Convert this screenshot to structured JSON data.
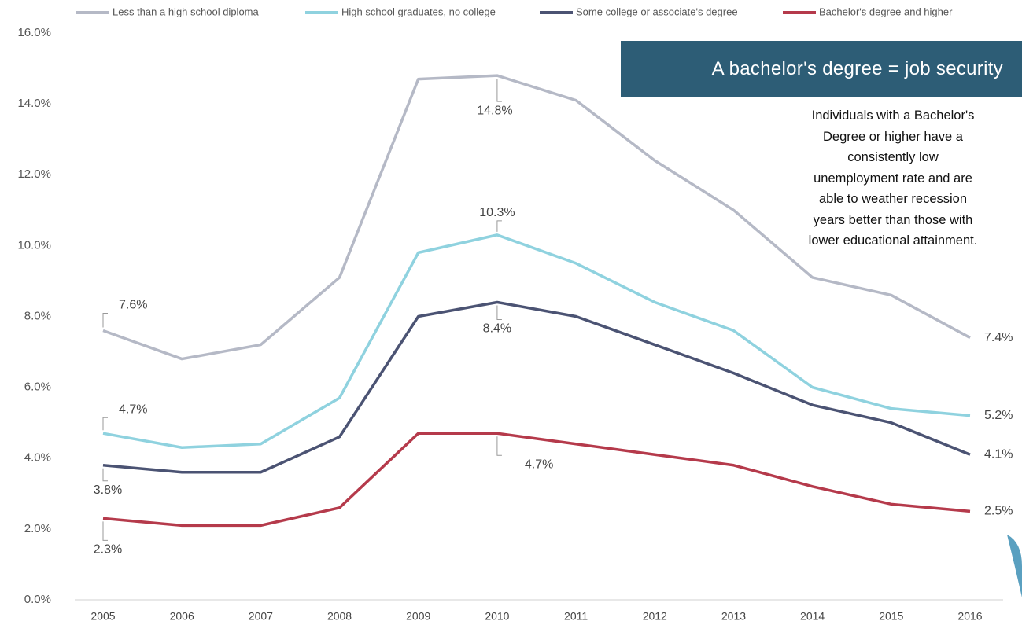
{
  "chart_data": {
    "type": "line",
    "categories": [
      "2005",
      "2006",
      "2007",
      "2008",
      "2009",
      "2010",
      "2011",
      "2012",
      "2013",
      "2014",
      "2015",
      "2016"
    ],
    "series": [
      {
        "name": "Less than a high school diploma",
        "color": "#b5b9c6",
        "values": [
          7.6,
          6.8,
          7.2,
          9.1,
          14.7,
          14.8,
          14.1,
          12.4,
          11.0,
          9.1,
          8.6,
          7.4
        ],
        "value_labels": [
          "7.6%",
          null,
          null,
          null,
          null,
          "14.8%",
          null,
          null,
          null,
          null,
          null,
          "7.4%"
        ]
      },
      {
        "name": "High school graduates, no college",
        "color": "#8fd2df",
        "values": [
          4.7,
          4.3,
          4.4,
          5.7,
          9.8,
          10.3,
          9.5,
          8.4,
          7.6,
          6.0,
          5.4,
          5.2
        ],
        "value_labels": [
          "4.7%",
          null,
          null,
          null,
          null,
          "10.3%",
          null,
          null,
          null,
          null,
          null,
          "5.2%"
        ]
      },
      {
        "name": "Some college or associate's degree",
        "color": "#4b5373",
        "values": [
          3.8,
          3.6,
          3.6,
          4.6,
          8.0,
          8.4,
          8.0,
          7.2,
          6.4,
          5.5,
          5.0,
          4.1
        ],
        "value_labels": [
          "3.8%",
          null,
          null,
          null,
          null,
          "8.4%",
          null,
          null,
          null,
          null,
          null,
          "4.1%"
        ]
      },
      {
        "name": "Bachelor's degree and higher",
        "color": "#b53a4b",
        "values": [
          2.3,
          2.1,
          2.1,
          2.6,
          4.7,
          4.7,
          4.4,
          4.1,
          3.8,
          3.2,
          2.7,
          2.5
        ],
        "value_labels": [
          "2.3%",
          null,
          null,
          null,
          null,
          "4.7%",
          null,
          null,
          null,
          null,
          null,
          "2.5%"
        ]
      }
    ],
    "ylim": [
      0,
      16
    ],
    "yticks": [
      {
        "value": 0,
        "label": "0.0%"
      },
      {
        "value": 2,
        "label": "2.0%"
      },
      {
        "value": 4,
        "label": "4.0%"
      },
      {
        "value": 6,
        "label": "6.0%"
      },
      {
        "value": 8,
        "label": "8.0%"
      },
      {
        "value": 10,
        "label": "10.0%"
      },
      {
        "value": 12,
        "label": "12.0%"
      },
      {
        "value": 14,
        "label": "14.0%"
      },
      {
        "value": 16,
        "label": "16.0%"
      }
    ],
    "grid": false,
    "legend": "top",
    "callout_title": "A bachelor's degree = job security",
    "callout_text": [
      "Individuals with a Bachelor's",
      "Degree or higher have a",
      "consistently low",
      "unemployment rate and are",
      "able to weather recession",
      "years better than those with",
      "lower educational attainment."
    ]
  }
}
